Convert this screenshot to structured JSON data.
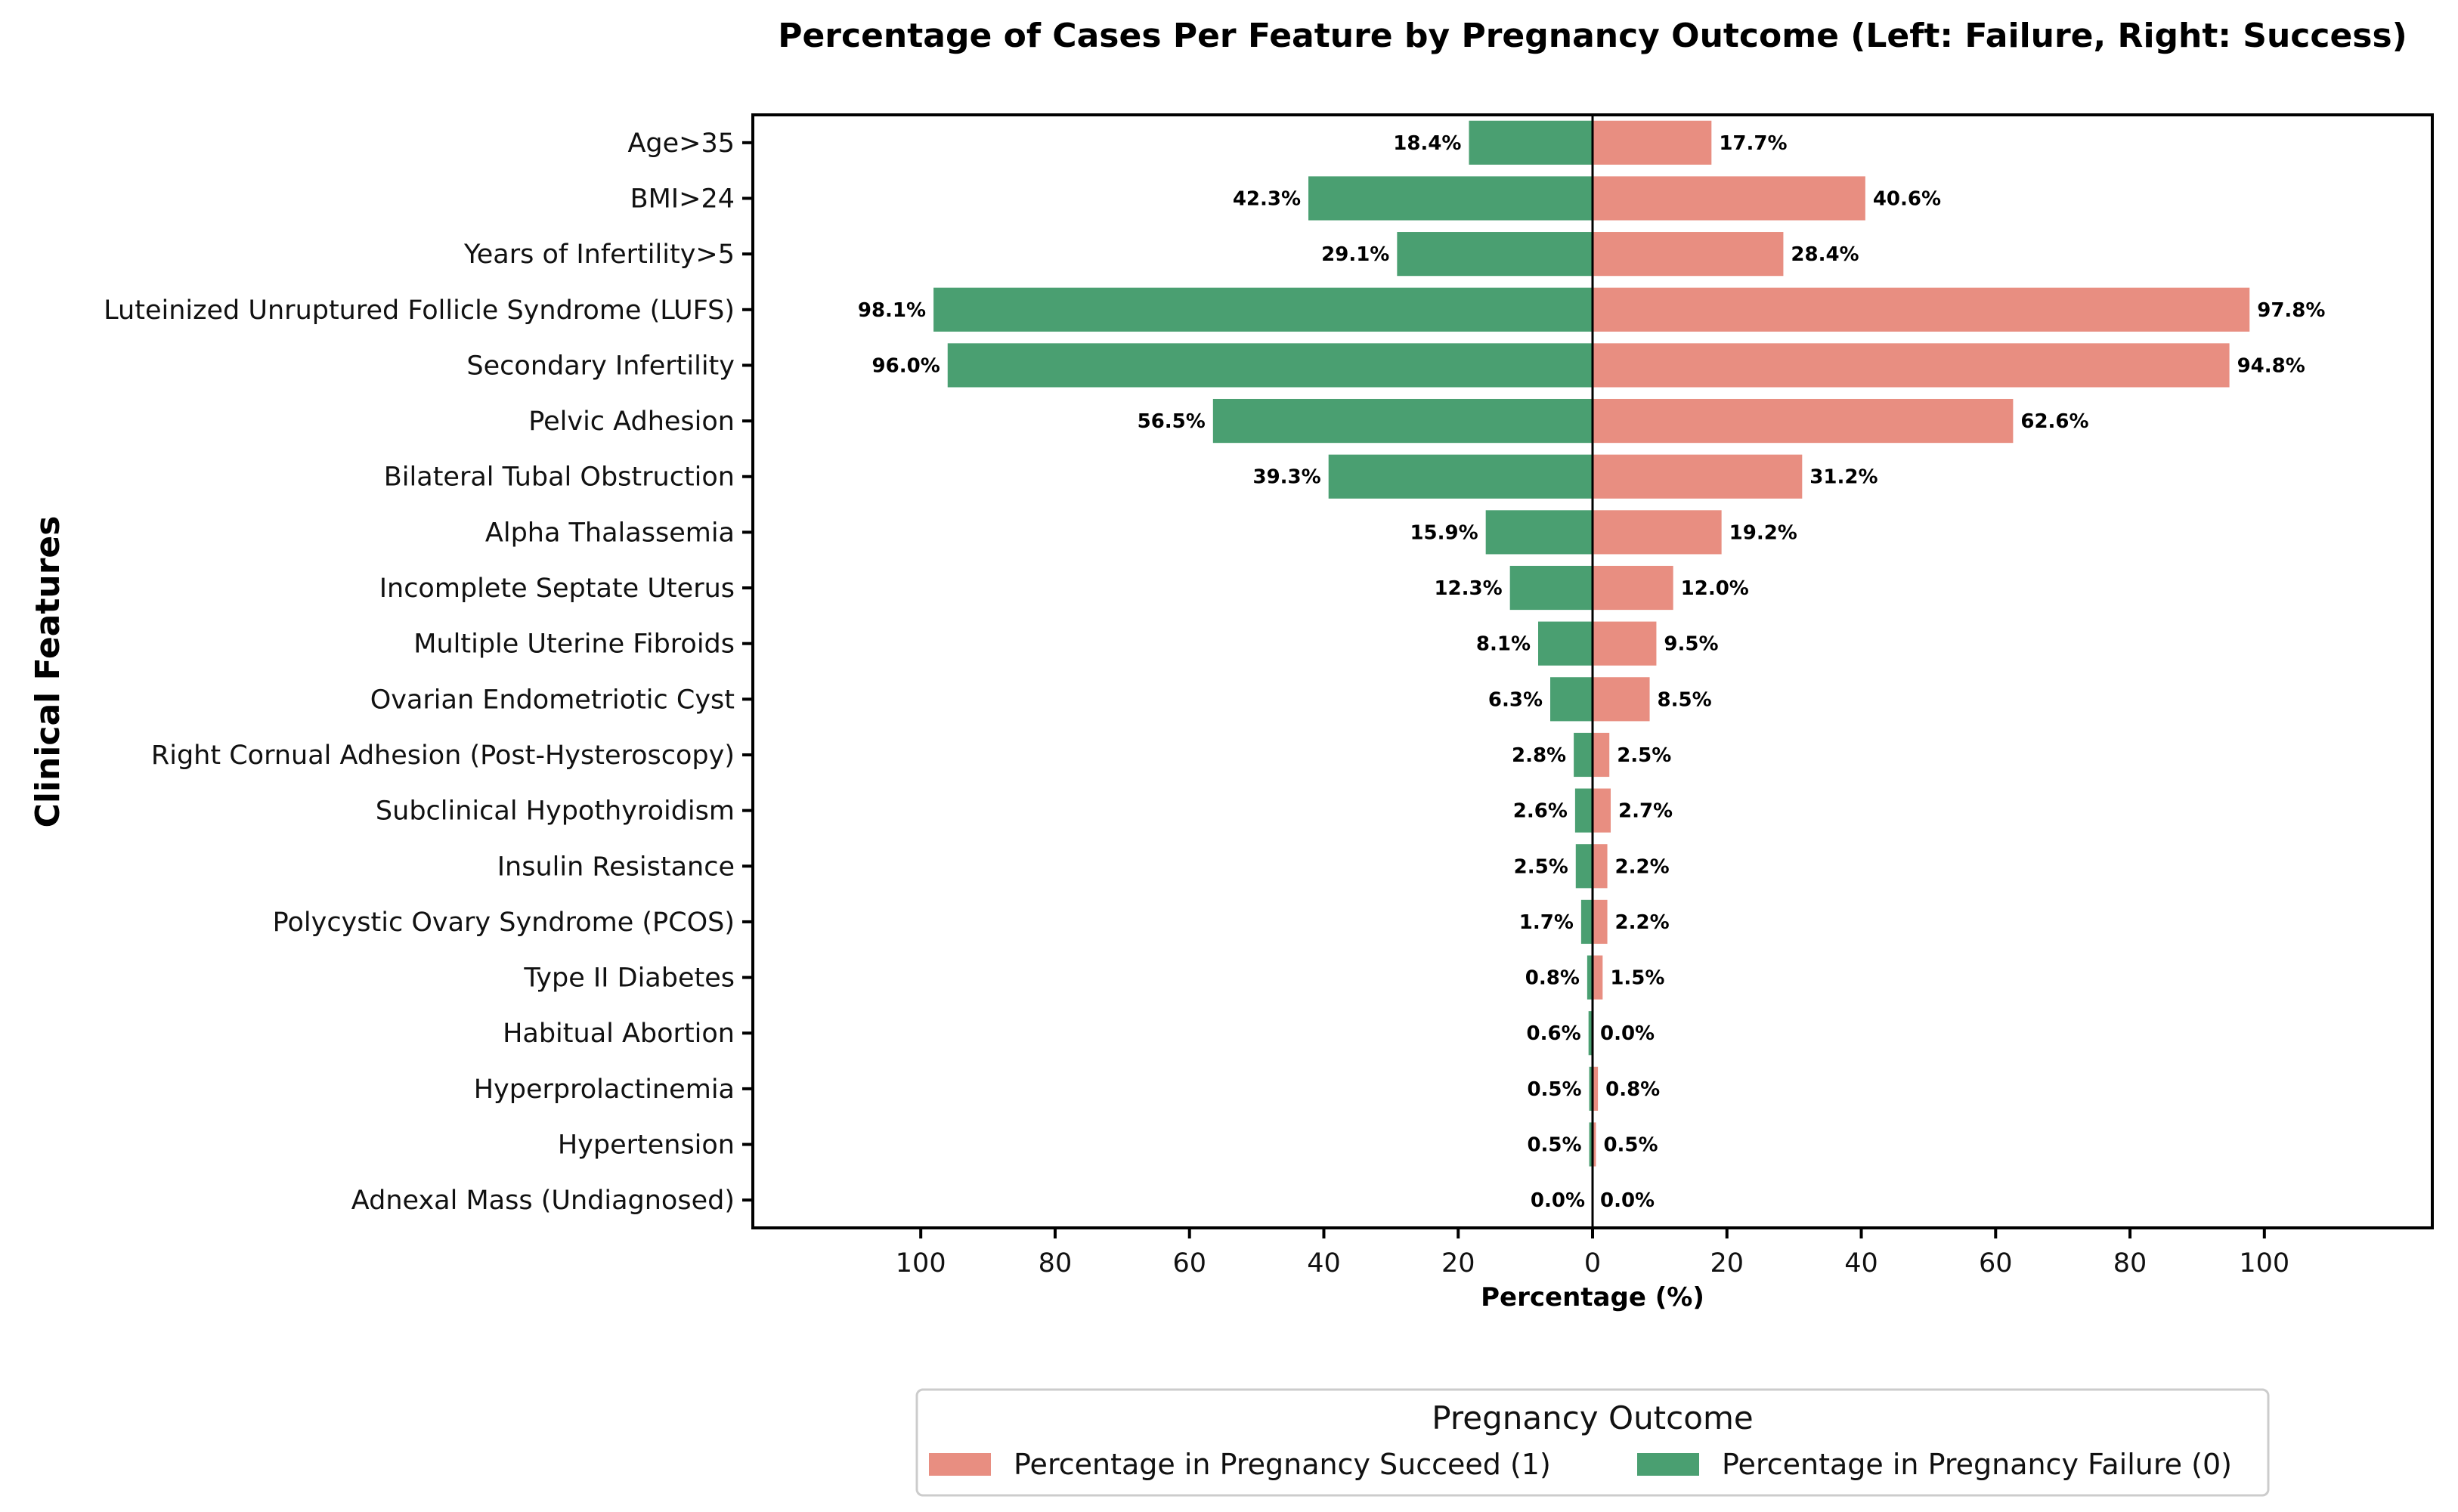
{
  "chart_data": {
    "type": "bar",
    "orientation": "horizontal-diverging",
    "title": "Percentage of Cases Per Feature by Pregnancy Outcome (Left: Failure, Right: Success)",
    "xlabel": "Percentage (%)",
    "ylabel": "Clinical Features",
    "xlim": [
      -125,
      125
    ],
    "xticks": [
      -100,
      -80,
      -60,
      -40,
      -20,
      0,
      20,
      40,
      60,
      80,
      100
    ],
    "xtick_labels": [
      "100",
      "80",
      "60",
      "40",
      "20",
      "0",
      "20",
      "40",
      "60",
      "80",
      "100"
    ],
    "categories": [
      "Age>35",
      "BMI>24",
      "Years of Infertility>5",
      "Luteinized Unruptured Follicle Syndrome (LUFS)",
      "Secondary Infertility",
      "Pelvic Adhesion",
      "Bilateral Tubal Obstruction",
      "Alpha Thalassemia",
      "Incomplete Septate Uterus",
      "Multiple Uterine Fibroids",
      "Ovarian Endometriotic Cyst",
      "Right Cornual Adhesion (Post-Hysteroscopy)",
      "Subclinical Hypothyroidism",
      "Insulin Resistance",
      "Polycystic Ovary Syndrome (PCOS)",
      "Type II Diabetes",
      "Habitual Abortion",
      "Hyperprolactinemia",
      "Hypertension",
      "Adnexal Mass (Undiagnosed)"
    ],
    "series": [
      {
        "name": "Percentage in Pregnancy Failure (0)",
        "side": "left",
        "color": "#4a9f71",
        "values": [
          18.4,
          42.3,
          29.1,
          98.1,
          96.0,
          56.5,
          39.3,
          15.9,
          12.3,
          8.1,
          6.3,
          2.8,
          2.6,
          2.5,
          1.7,
          0.8,
          0.6,
          0.5,
          0.5,
          0.0
        ],
        "labels": [
          "18.4%",
          "42.3%",
          "29.1%",
          "98.1%",
          "96.0%",
          "56.5%",
          "39.3%",
          "15.9%",
          "12.3%",
          "8.1%",
          "6.3%",
          "2.8%",
          "2.6%",
          "2.5%",
          "1.7%",
          "0.8%",
          "0.6%",
          "0.5%",
          "0.5%",
          "0.0%"
        ]
      },
      {
        "name": "Percentage in Pregnancy Succeed (1)",
        "side": "right",
        "color": "#e88e81",
        "values": [
          17.7,
          40.6,
          28.4,
          97.8,
          94.8,
          62.6,
          31.2,
          19.2,
          12.0,
          9.5,
          8.5,
          2.5,
          2.7,
          2.2,
          2.2,
          1.5,
          0.0,
          0.8,
          0.5,
          0.0
        ],
        "labels": [
          "17.7%",
          "40.6%",
          "28.4%",
          "97.8%",
          "94.8%",
          "62.6%",
          "31.2%",
          "19.2%",
          "12.0%",
          "9.5%",
          "8.5%",
          "2.5%",
          "2.7%",
          "2.2%",
          "2.2%",
          "1.5%",
          "0.0%",
          "0.8%",
          "0.5%",
          "0.0%"
        ]
      }
    ],
    "legend": {
      "title": "Pregnancy Outcome",
      "placement": "bottom-center",
      "entries": [
        {
          "label": "Percentage in Pregnancy Succeed (1)",
          "color": "#e88e81"
        },
        {
          "label": "Percentage in Pregnancy Failure (0)",
          "color": "#4a9f71"
        }
      ]
    },
    "grid": false
  }
}
